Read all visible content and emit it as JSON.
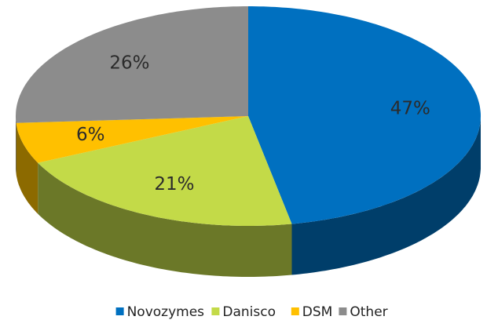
{
  "chart_data": {
    "type": "pie",
    "categories": [
      "Novozymes",
      "Danisco",
      "DSM",
      "Other"
    ],
    "values": [
      47,
      21,
      6,
      26
    ],
    "value_labels": [
      "47%",
      "21%",
      "6%",
      "26%"
    ],
    "colors": [
      "#0070c0",
      "#c3da48",
      "#ffc000",
      "#8c8c8c"
    ],
    "legend": "bottom"
  }
}
